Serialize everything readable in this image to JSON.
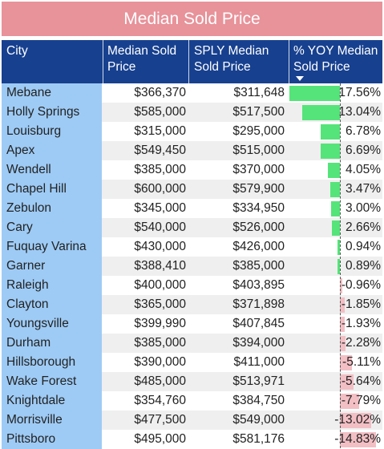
{
  "title": "Median Sold Price",
  "columns": {
    "city": "City",
    "median": "Median Sold Price",
    "sply": "SPLY Median Sold Price",
    "yoy": "% YOY Median Sold Price"
  },
  "sort": {
    "column": "yoy",
    "direction": "descending"
  },
  "colors": {
    "title_bg": "#e8929a",
    "header_bg": "#17408f",
    "city_bg": "#9ecbf5",
    "positive_bar": "#55e47a",
    "negative_bar": "#f2bfc4"
  },
  "rows": [
    {
      "city": "Mebane",
      "median": "$366,370",
      "sply": "$311,648",
      "yoy": "17.56%",
      "yoy_value": 17.56
    },
    {
      "city": "Holly Springs",
      "median": "$585,000",
      "sply": "$517,500",
      "yoy": "13.04%",
      "yoy_value": 13.04
    },
    {
      "city": "Louisburg",
      "median": "$315,000",
      "sply": "$295,000",
      "yoy": "6.78%",
      "yoy_value": 6.78
    },
    {
      "city": "Apex",
      "median": "$549,450",
      "sply": "$515,000",
      "yoy": "6.69%",
      "yoy_value": 6.69
    },
    {
      "city": "Wendell",
      "median": "$385,000",
      "sply": "$370,000",
      "yoy": "4.05%",
      "yoy_value": 4.05
    },
    {
      "city": "Chapel Hill",
      "median": "$600,000",
      "sply": "$579,900",
      "yoy": "3.47%",
      "yoy_value": 3.47
    },
    {
      "city": "Zebulon",
      "median": "$345,000",
      "sply": "$334,950",
      "yoy": "3.00%",
      "yoy_value": 3.0
    },
    {
      "city": "Cary",
      "median": "$540,000",
      "sply": "$526,000",
      "yoy": "2.66%",
      "yoy_value": 2.66
    },
    {
      "city": "Fuquay Varina",
      "median": "$430,000",
      "sply": "$426,000",
      "yoy": "0.94%",
      "yoy_value": 0.94
    },
    {
      "city": "Garner",
      "median": "$388,410",
      "sply": "$385,000",
      "yoy": "0.89%",
      "yoy_value": 0.89
    },
    {
      "city": "Raleigh",
      "median": "$400,000",
      "sply": "$403,895",
      "yoy": "-0.96%",
      "yoy_value": -0.96
    },
    {
      "city": "Clayton",
      "median": "$365,000",
      "sply": "$371,898",
      "yoy": "-1.85%",
      "yoy_value": -1.85
    },
    {
      "city": "Youngsville",
      "median": "$399,990",
      "sply": "$407,845",
      "yoy": "-1.93%",
      "yoy_value": -1.93
    },
    {
      "city": "Durham",
      "median": "$385,000",
      "sply": "$394,000",
      "yoy": "-2.28%",
      "yoy_value": -2.28
    },
    {
      "city": "Hillsborough",
      "median": "$390,000",
      "sply": "$411,000",
      "yoy": "-5.11%",
      "yoy_value": -5.11
    },
    {
      "city": "Wake Forest",
      "median": "$485,000",
      "sply": "$513,971",
      "yoy": "-5.64%",
      "yoy_value": -5.64
    },
    {
      "city": "Knightdale",
      "median": "$354,760",
      "sply": "$384,750",
      "yoy": "-7.79%",
      "yoy_value": -7.79
    },
    {
      "city": "Morrisville",
      "median": "$477,500",
      "sply": "$549,000",
      "yoy": "-13.02%",
      "yoy_value": -13.02
    },
    {
      "city": "Pittsboro",
      "median": "$495,000",
      "sply": "$581,176",
      "yoy": "-14.83%",
      "yoy_value": -14.83
    }
  ]
}
